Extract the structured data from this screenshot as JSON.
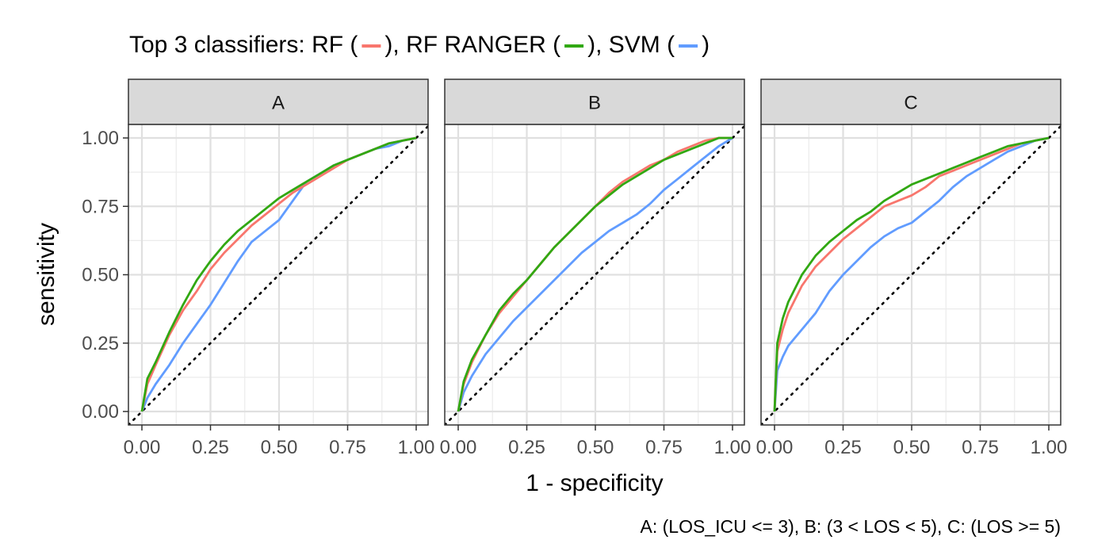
{
  "chart_data": {
    "type": "line",
    "title_parts": {
      "prefix": "Top 3 classifiers: RF (",
      "sep1": "), RF RANGER (",
      "sep2": "), SVM (",
      "suffix": ")"
    },
    "xlabel": "1 - specificity",
    "ylabel": "sensitivity",
    "caption": "A: (LOS_ICU <= 3), B: (3 < LOS < 5), C: (LOS >= 5)",
    "xlim": [
      0,
      1
    ],
    "ylim": [
      0,
      1
    ],
    "x_ticks": [
      "0.00",
      "0.25",
      "0.50",
      "0.75",
      "1.00"
    ],
    "y_ticks": [
      "0.00",
      "0.25",
      "0.50",
      "0.75",
      "1.00"
    ],
    "grid": true,
    "reference_line": "diagonal dotted",
    "series_colors": {
      "RF": "#F8766D",
      "RF RANGER": "#31A812",
      "SVM": "#619CFF"
    },
    "panels": [
      {
        "label": "A",
        "series": [
          {
            "name": "RF",
            "x": [
              0,
              0.02,
              0.05,
              0.1,
              0.15,
              0.2,
              0.25,
              0.3,
              0.35,
              0.4,
              0.45,
              0.5,
              0.55,
              0.6,
              0.65,
              0.7,
              0.75,
              0.8,
              0.85,
              0.9,
              0.95,
              1.0
            ],
            "y": [
              0,
              0.1,
              0.17,
              0.28,
              0.37,
              0.44,
              0.52,
              0.58,
              0.63,
              0.68,
              0.72,
              0.76,
              0.8,
              0.83,
              0.86,
              0.89,
              0.92,
              0.94,
              0.96,
              0.98,
              0.99,
              1.0
            ]
          },
          {
            "name": "RF RANGER",
            "x": [
              0,
              0.02,
              0.05,
              0.1,
              0.15,
              0.2,
              0.25,
              0.3,
              0.35,
              0.4,
              0.45,
              0.5,
              0.55,
              0.6,
              0.65,
              0.7,
              0.75,
              0.8,
              0.85,
              0.9,
              0.95,
              1.0
            ],
            "y": [
              0,
              0.12,
              0.18,
              0.29,
              0.39,
              0.48,
              0.55,
              0.61,
              0.66,
              0.7,
              0.74,
              0.78,
              0.81,
              0.84,
              0.87,
              0.9,
              0.92,
              0.94,
              0.96,
              0.98,
              0.99,
              1.0
            ]
          },
          {
            "name": "SVM",
            "x": [
              0,
              0.02,
              0.05,
              0.1,
              0.15,
              0.2,
              0.25,
              0.3,
              0.35,
              0.4,
              0.45,
              0.5,
              0.55,
              0.6,
              0.65,
              0.7,
              0.75,
              0.8,
              0.85,
              0.9,
              0.95,
              1.0
            ],
            "y": [
              0,
              0.05,
              0.1,
              0.17,
              0.25,
              0.32,
              0.39,
              0.47,
              0.55,
              0.62,
              0.66,
              0.7,
              0.77,
              0.84,
              0.87,
              0.9,
              0.92,
              0.94,
              0.96,
              0.97,
              0.99,
              1.0
            ]
          }
        ]
      },
      {
        "label": "B",
        "series": [
          {
            "name": "RF",
            "x": [
              0,
              0.02,
              0.05,
              0.1,
              0.15,
              0.2,
              0.25,
              0.3,
              0.35,
              0.4,
              0.45,
              0.5,
              0.55,
              0.6,
              0.65,
              0.7,
              0.75,
              0.8,
              0.85,
              0.9,
              0.95,
              1.0
            ],
            "y": [
              0,
              0.1,
              0.18,
              0.28,
              0.36,
              0.42,
              0.48,
              0.54,
              0.6,
              0.65,
              0.7,
              0.75,
              0.8,
              0.84,
              0.87,
              0.9,
              0.92,
              0.95,
              0.97,
              0.99,
              1.0,
              1.0
            ]
          },
          {
            "name": "RF RANGER",
            "x": [
              0,
              0.02,
              0.05,
              0.1,
              0.15,
              0.2,
              0.25,
              0.3,
              0.35,
              0.4,
              0.45,
              0.5,
              0.55,
              0.6,
              0.65,
              0.7,
              0.75,
              0.8,
              0.85,
              0.9,
              0.95,
              1.0
            ],
            "y": [
              0,
              0.11,
              0.19,
              0.28,
              0.37,
              0.43,
              0.48,
              0.54,
              0.6,
              0.65,
              0.7,
              0.75,
              0.79,
              0.83,
              0.86,
              0.89,
              0.92,
              0.94,
              0.96,
              0.98,
              1.0,
              1.0
            ]
          },
          {
            "name": "SVM",
            "x": [
              0,
              0.02,
              0.05,
              0.1,
              0.15,
              0.2,
              0.25,
              0.3,
              0.35,
              0.4,
              0.45,
              0.5,
              0.55,
              0.6,
              0.65,
              0.7,
              0.75,
              0.8,
              0.85,
              0.9,
              0.95,
              1.0
            ],
            "y": [
              0,
              0.07,
              0.13,
              0.21,
              0.27,
              0.33,
              0.38,
              0.43,
              0.48,
              0.53,
              0.58,
              0.62,
              0.66,
              0.69,
              0.72,
              0.76,
              0.81,
              0.85,
              0.89,
              0.93,
              0.97,
              1.0
            ]
          }
        ]
      },
      {
        "label": "C",
        "series": [
          {
            "name": "RF",
            "x": [
              0,
              0.01,
              0.03,
              0.05,
              0.1,
              0.15,
              0.2,
              0.25,
              0.3,
              0.35,
              0.4,
              0.45,
              0.5,
              0.55,
              0.6,
              0.65,
              0.7,
              0.75,
              0.8,
              0.85,
              0.9,
              0.95,
              1.0
            ],
            "y": [
              0,
              0.22,
              0.3,
              0.36,
              0.46,
              0.53,
              0.58,
              0.63,
              0.67,
              0.71,
              0.75,
              0.77,
              0.79,
              0.82,
              0.86,
              0.88,
              0.9,
              0.92,
              0.94,
              0.96,
              0.98,
              0.99,
              1.0
            ]
          },
          {
            "name": "RF RANGER",
            "x": [
              0,
              0.01,
              0.03,
              0.05,
              0.1,
              0.15,
              0.2,
              0.25,
              0.3,
              0.35,
              0.4,
              0.45,
              0.5,
              0.55,
              0.6,
              0.65,
              0.7,
              0.75,
              0.8,
              0.85,
              0.9,
              0.95,
              1.0
            ],
            "y": [
              0,
              0.25,
              0.34,
              0.4,
              0.5,
              0.57,
              0.62,
              0.66,
              0.7,
              0.73,
              0.77,
              0.8,
              0.83,
              0.85,
              0.87,
              0.89,
              0.91,
              0.93,
              0.95,
              0.97,
              0.98,
              0.99,
              1.0
            ]
          },
          {
            "name": "SVM",
            "x": [
              0,
              0.01,
              0.03,
              0.05,
              0.1,
              0.15,
              0.2,
              0.25,
              0.3,
              0.35,
              0.4,
              0.45,
              0.5,
              0.55,
              0.6,
              0.65,
              0.7,
              0.75,
              0.8,
              0.85,
              0.9,
              0.95,
              1.0
            ],
            "y": [
              0,
              0.15,
              0.2,
              0.24,
              0.3,
              0.36,
              0.44,
              0.5,
              0.55,
              0.6,
              0.64,
              0.67,
              0.69,
              0.73,
              0.77,
              0.82,
              0.86,
              0.89,
              0.92,
              0.95,
              0.97,
              0.99,
              1.0
            ]
          }
        ]
      }
    ]
  }
}
